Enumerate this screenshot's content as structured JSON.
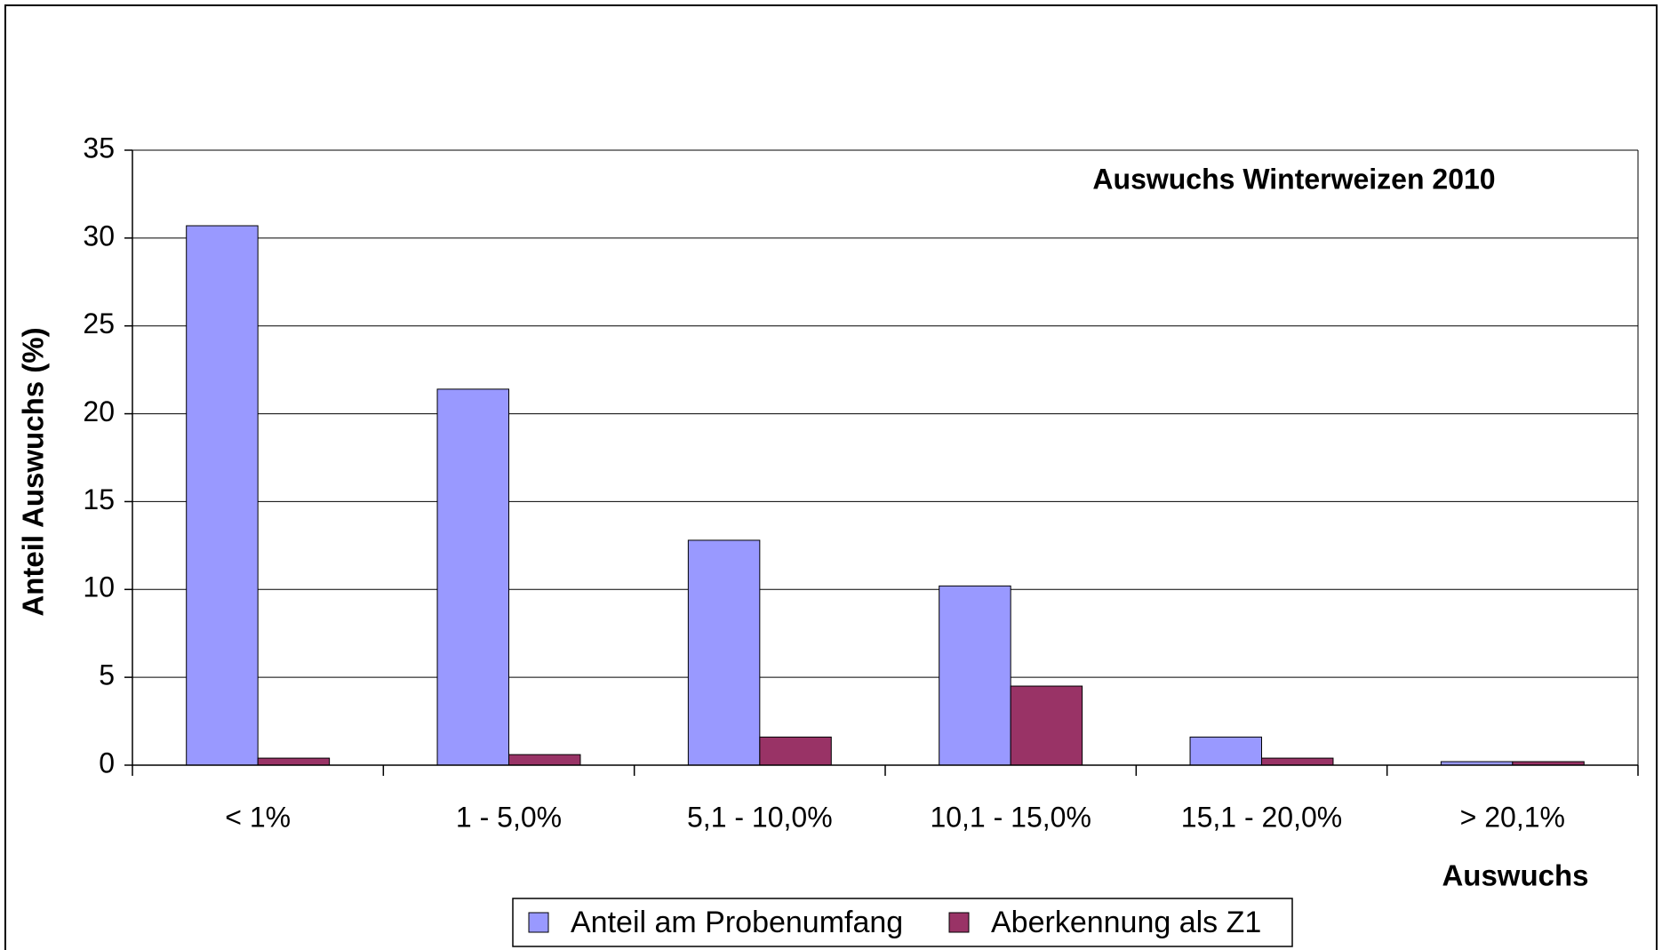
{
  "chart_data": {
    "type": "bar",
    "title": "Auswuchs Winterweizen 2010",
    "x_label": "Auswuchs",
    "y_label": "Anteil Auswuchs (%)",
    "categories": [
      "< 1%",
      "1 - 5,0%",
      "5,1 - 10,0%",
      "10,1 - 15,0%",
      "15,1 - 20,0%",
      "> 20,1%"
    ],
    "series": [
      {
        "name": "Anteil am Probenumfang",
        "color": "#9999ff",
        "values": [
          30.7,
          21.4,
          12.8,
          10.2,
          1.6,
          0.2
        ]
      },
      {
        "name": "Aberkennung als Z1",
        "color": "#993366",
        "values": [
          0.4,
          0.6,
          1.6,
          4.5,
          0.4,
          0.2
        ]
      }
    ],
    "ylim": [
      0,
      35
    ],
    "yticks": [
      0,
      5,
      10,
      15,
      20,
      25,
      30,
      35
    ],
    "grid": true,
    "legend": "bottom"
  }
}
